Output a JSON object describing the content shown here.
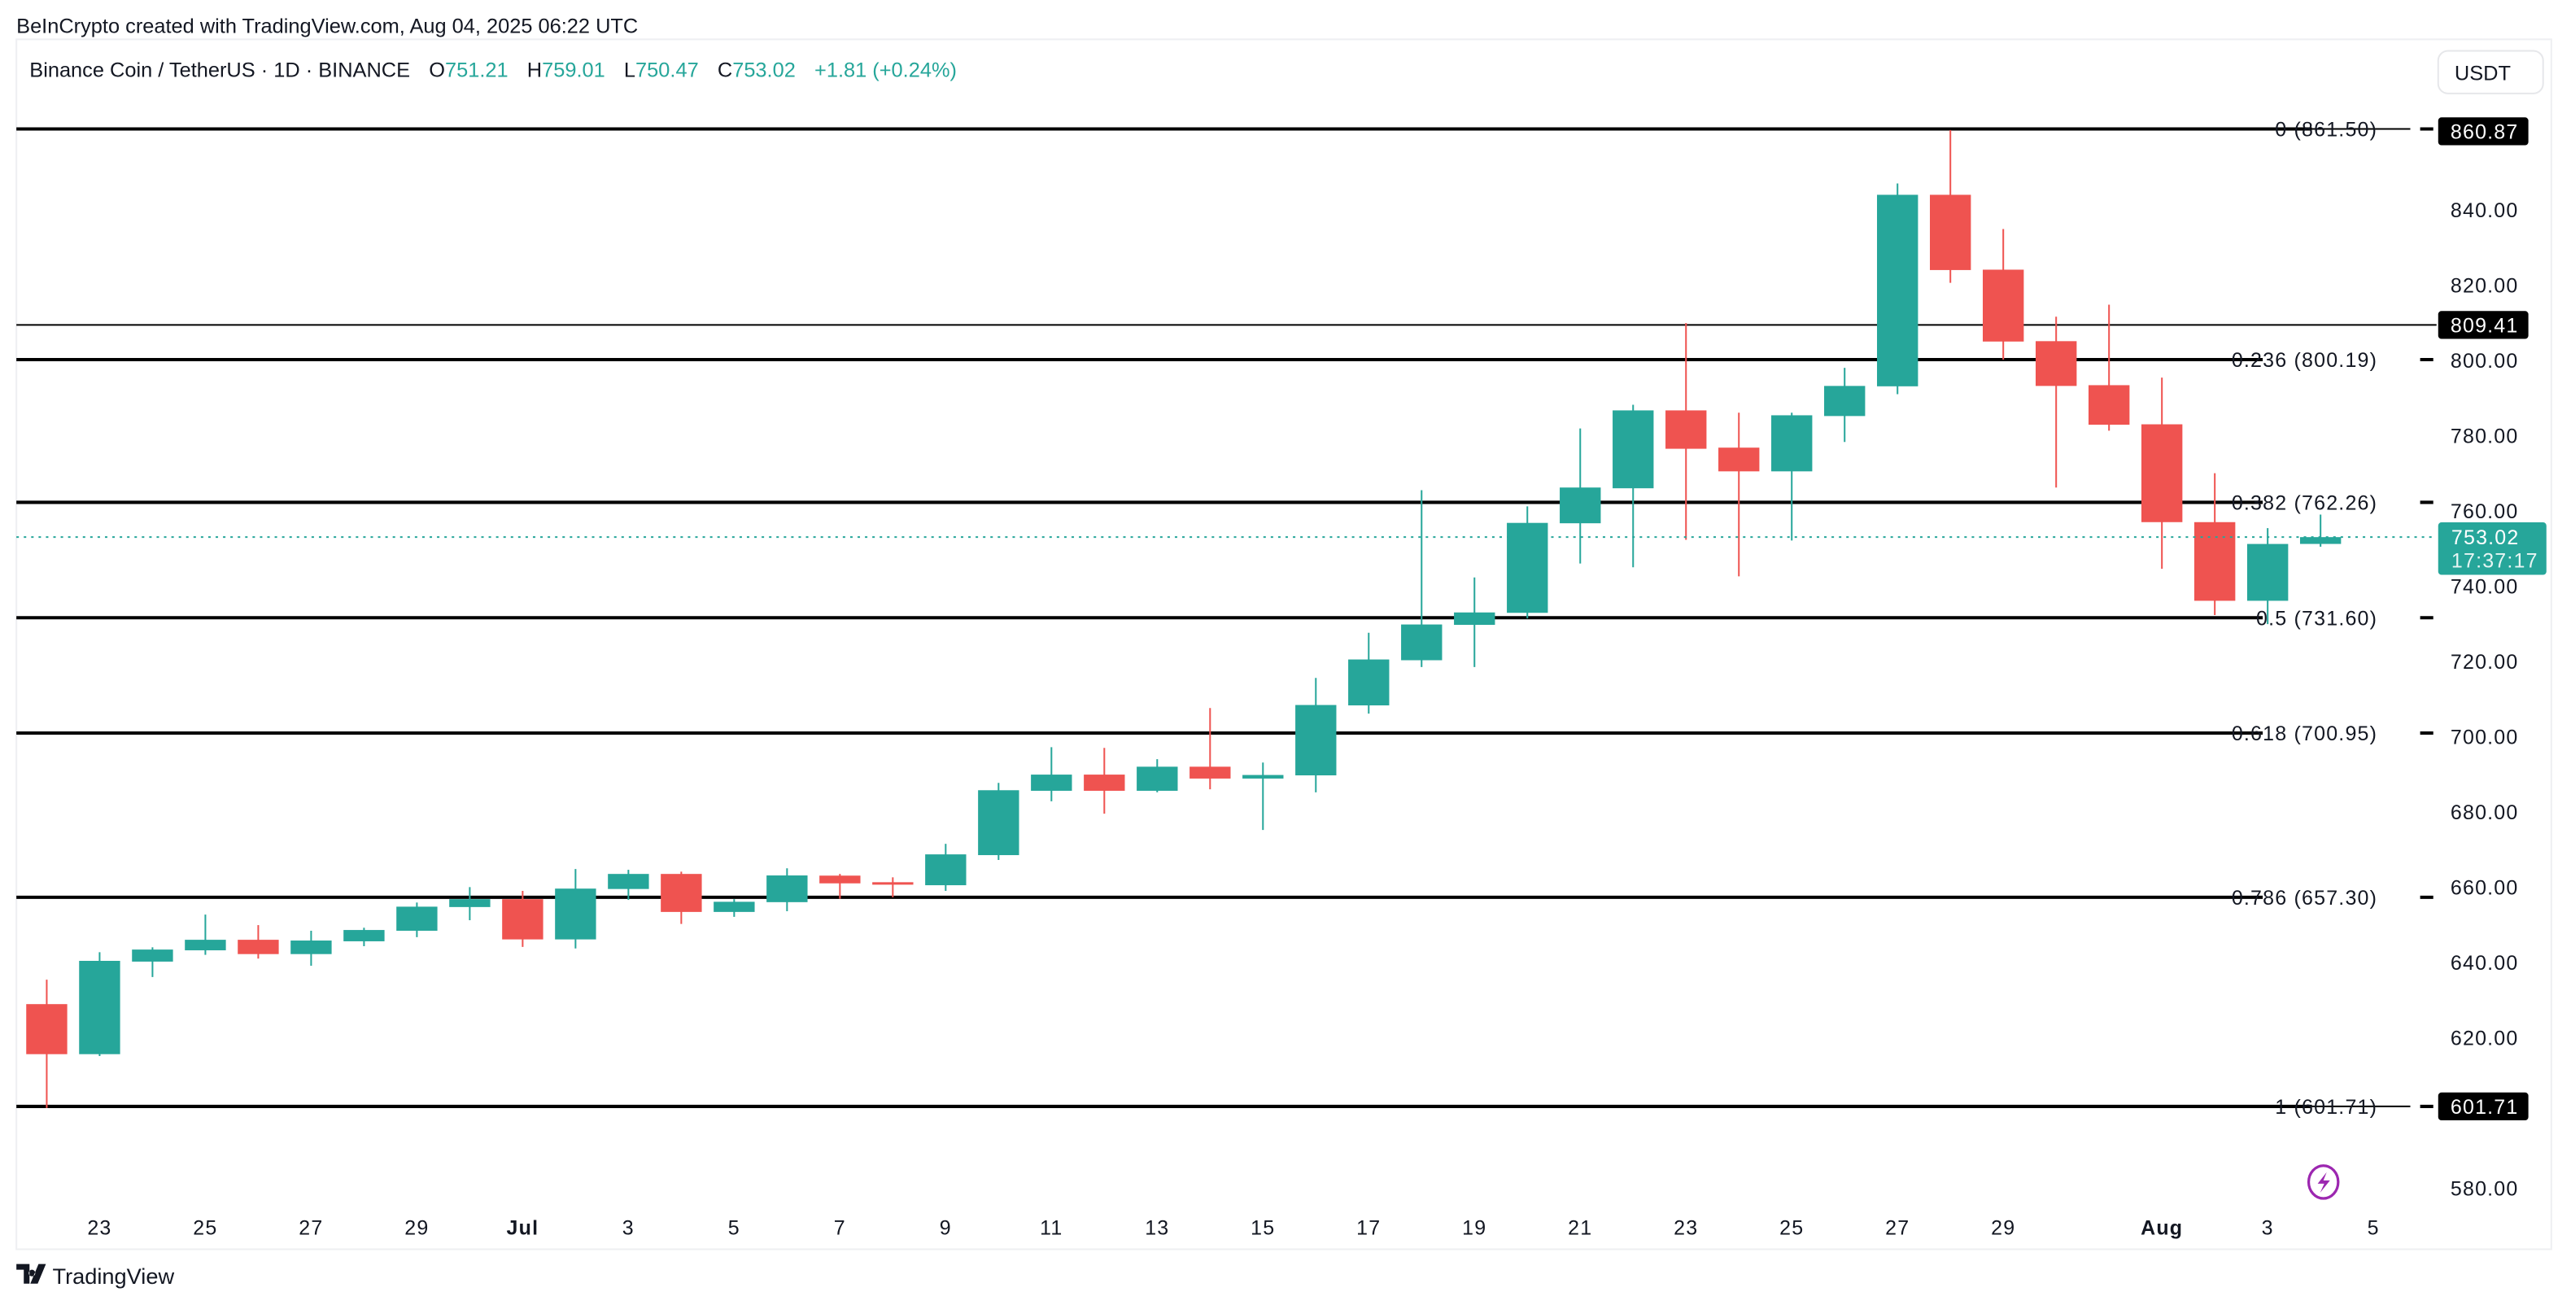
{
  "header": {
    "attribution": "BeInCrypto created with TradingView.com, Aug 04, 2025 06:22 UTC"
  },
  "legend": {
    "symbol": "Binance Coin / TetherUS · 1D · BINANCE",
    "o_label": "O",
    "o_value": "751.21",
    "h_label": "H",
    "h_value": "759.01",
    "l_label": "L",
    "l_value": "750.47",
    "c_label": "C",
    "c_value": "753.02",
    "change": "+1.81 (+0.24%)"
  },
  "currency_button": "USDT",
  "footer_logo": "TradingView",
  "colors": {
    "up": "#26a69a",
    "down": "#ef5350",
    "line": "#000000",
    "alert": "#9c27b0"
  },
  "chart_data": {
    "type": "candlestick",
    "title": "",
    "ylim": [
      572,
      876
    ],
    "grid": false,
    "y_ticks": [
      "840.00",
      "820.00",
      "800.00",
      "780.00",
      "760.00",
      "740.00",
      "720.00",
      "700.00",
      "680.00",
      "660.00",
      "640.00",
      "620.00",
      "580.00"
    ],
    "x_ticks": [
      {
        "label": "23",
        "date": "2025-06-23"
      },
      {
        "label": "25",
        "date": "2025-06-25"
      },
      {
        "label": "27",
        "date": "2025-06-27"
      },
      {
        "label": "29",
        "date": "2025-06-29"
      },
      {
        "label": "Jul",
        "date": "2025-07-01",
        "bold": true
      },
      {
        "label": "3",
        "date": "2025-07-03"
      },
      {
        "label": "5",
        "date": "2025-07-05"
      },
      {
        "label": "7",
        "date": "2025-07-07"
      },
      {
        "label": "9",
        "date": "2025-07-09"
      },
      {
        "label": "11",
        "date": "2025-07-11"
      },
      {
        "label": "13",
        "date": "2025-07-13"
      },
      {
        "label": "15",
        "date": "2025-07-15"
      },
      {
        "label": "17",
        "date": "2025-07-17"
      },
      {
        "label": "19",
        "date": "2025-07-19"
      },
      {
        "label": "21",
        "date": "2025-07-21"
      },
      {
        "label": "23",
        "date": "2025-07-23"
      },
      {
        "label": "25",
        "date": "2025-07-25"
      },
      {
        "label": "27",
        "date": "2025-07-27"
      },
      {
        "label": "29",
        "date": "2025-07-29"
      },
      {
        "label": "Aug",
        "date": "2025-08-01",
        "bold": true
      },
      {
        "label": "3",
        "date": "2025-08-03"
      },
      {
        "label": "5",
        "date": "2025-08-05"
      }
    ],
    "candles_columns": [
      "date",
      "open",
      "high",
      "low",
      "close"
    ],
    "candles": [
      [
        "2025-06-22",
        628.9,
        635.4,
        601.3,
        615.6
      ],
      [
        "2025-06-23",
        615.6,
        642.7,
        615.1,
        640.4
      ],
      [
        "2025-06-24",
        640.2,
        644.0,
        636.1,
        643.4
      ],
      [
        "2025-06-25",
        643.2,
        652.7,
        642.0,
        646.0
      ],
      [
        "2025-06-26",
        646.0,
        649.9,
        641.0,
        642.2
      ],
      [
        "2025-06-27",
        642.2,
        648.4,
        639.1,
        645.8
      ],
      [
        "2025-06-28",
        645.6,
        649.2,
        644.3,
        648.6
      ],
      [
        "2025-06-29",
        648.4,
        655.9,
        646.7,
        654.8
      ],
      [
        "2025-06-30",
        654.7,
        660.0,
        651.2,
        656.8
      ],
      [
        "2025-07-01",
        656.8,
        659.0,
        644.1,
        646.1
      ],
      [
        "2025-07-02",
        646.1,
        664.8,
        643.7,
        659.6
      ],
      [
        "2025-07-03",
        659.5,
        664.6,
        656.6,
        663.5
      ],
      [
        "2025-07-04",
        663.5,
        664.1,
        650.2,
        653.4
      ],
      [
        "2025-07-05",
        653.4,
        656.8,
        652.1,
        656.1
      ],
      [
        "2025-07-06",
        656.0,
        665.0,
        653.6,
        663.1
      ],
      [
        "2025-07-07",
        663.05,
        663.5,
        656.9,
        661.0
      ],
      [
        "2025-07-08",
        661.3,
        662.6,
        657.3,
        661.0
      ],
      [
        "2025-07-09",
        660.5,
        671.5,
        659.0,
        668.7
      ],
      [
        "2025-07-10",
        668.5,
        687.7,
        667.2,
        685.75
      ],
      [
        "2025-07-11",
        685.6,
        697.2,
        682.8,
        689.9
      ],
      [
        "2025-07-12",
        689.9,
        697.0,
        679.5,
        685.6
      ],
      [
        "2025-07-13",
        685.6,
        694.0,
        685.2,
        692.0
      ],
      [
        "2025-07-14",
        692.0,
        707.6,
        686.0,
        688.85
      ],
      [
        "2025-07-15",
        688.85,
        693.1,
        675.2,
        689.8
      ],
      [
        "2025-07-16",
        689.7,
        715.6,
        685.2,
        708.4
      ],
      [
        "2025-07-17",
        708.3,
        727.6,
        706.1,
        720.5
      ],
      [
        "2025-07-18",
        720.3,
        765.5,
        718.5,
        729.8
      ],
      [
        "2025-07-19",
        729.7,
        742.3,
        718.5,
        733.0
      ],
      [
        "2025-07-20",
        732.9,
        761.2,
        731.4,
        756.8
      ],
      [
        "2025-07-21",
        756.7,
        781.9,
        746.0,
        766.2
      ],
      [
        "2025-07-22",
        766.0,
        788.2,
        745.0,
        786.7
      ],
      [
        "2025-07-23",
        786.7,
        809.9,
        752.3,
        776.5
      ],
      [
        "2025-07-24",
        776.8,
        786.1,
        742.6,
        770.5
      ],
      [
        "2025-07-25",
        770.5,
        786.1,
        752.1,
        785.4
      ],
      [
        "2025-07-26",
        785.2,
        798.0,
        778.3,
        793.2
      ],
      [
        "2025-07-27",
        793.1,
        847.0,
        791.0,
        844.0
      ],
      [
        "2025-07-28",
        844.0,
        861.2,
        820.6,
        824.0
      ],
      [
        "2025-07-29",
        824.1,
        834.9,
        800.2,
        805.0
      ],
      [
        "2025-07-30",
        805.1,
        811.6,
        766.2,
        793.2
      ],
      [
        "2025-07-31",
        793.4,
        814.8,
        781.3,
        782.9
      ],
      [
        "2025-08-01",
        783.0,
        795.4,
        744.6,
        757.0
      ],
      [
        "2025-08-02",
        757.0,
        770.0,
        732.3,
        736.1
      ],
      [
        "2025-08-03",
        736.1,
        755.4,
        729.9,
        751.2
      ],
      [
        "2025-08-04",
        751.21,
        759.01,
        750.47,
        753.02
      ]
    ],
    "fib_levels": [
      {
        "level": "0",
        "price": 861.5,
        "label": "0 (861.50)"
      },
      {
        "level": "0.236",
        "price": 800.19,
        "label": "0.236 (800.19)"
      },
      {
        "level": "0.382",
        "price": 762.26,
        "label": "0.382 (762.26)"
      },
      {
        "level": "0.5",
        "price": 731.6,
        "label": "0.5 (731.60)"
      },
      {
        "level": "0.618",
        "price": 700.95,
        "label": "0.618 (700.95)"
      },
      {
        "level": "0.786",
        "price": 657.3,
        "label": "0.786 (657.30)"
      },
      {
        "level": "1",
        "price": 601.71,
        "label": "1 (601.71)"
      }
    ],
    "horizontal_line": {
      "price": 809.41,
      "label": "809.41"
    },
    "price_labels": [
      {
        "price": 860.87,
        "label": "860.87"
      },
      {
        "price": 601.71,
        "label": "601.71"
      }
    ],
    "last_price": {
      "price": 753.02,
      "label": "753.02",
      "countdown": "17:37:17"
    }
  }
}
